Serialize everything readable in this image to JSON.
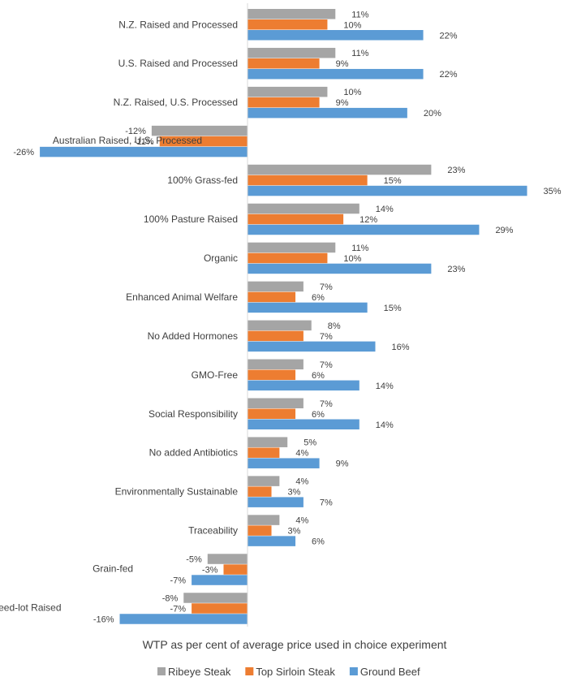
{
  "chart_data": {
    "type": "bar",
    "orientation": "horizontal",
    "xlabel": "WTP as per cent of average price used in choice experiment",
    "ylabel": "",
    "xlim": [
      -26,
      35
    ],
    "grid": false,
    "legend_position": "bottom",
    "categories": [
      "N.Z. Raised and Processed",
      "U.S. Raised and Processed",
      "N.Z. Raised, U.S. Processed",
      "Australian Raised, U.S. Processed",
      "100% Grass-fed",
      "100% Pasture Raised",
      "Organic",
      "Enhanced Animal Welfare",
      "No Added Hormones",
      "GMO-Free",
      "Social Responsibility",
      "No added Antibiotics",
      "Environmentally Sustainable",
      "Traceability",
      "Grain-fed",
      "Feed-lot Raised"
    ],
    "series": [
      {
        "name": "Ribeye Steak",
        "color": "#a5a5a5",
        "values": [
          11,
          11,
          10,
          -12,
          23,
          14,
          11,
          7,
          8,
          7,
          7,
          5,
          4,
          4,
          -5,
          -8
        ],
        "labels": [
          "11%",
          "11%",
          "10%",
          "-12%",
          "23%",
          "14%",
          "11%",
          "7%",
          "8%",
          "7%",
          "7%",
          "5%",
          "4%",
          "4%",
          "-5%",
          "-8%"
        ]
      },
      {
        "name": "Top Sirloin Steak",
        "color": "#ed7d31",
        "values": [
          10,
          9,
          9,
          -11,
          15,
          12,
          10,
          6,
          7,
          6,
          6,
          4,
          3,
          3,
          -3,
          -7
        ],
        "labels": [
          "10%",
          "9%",
          "9%",
          "-11%",
          "15%",
          "12%",
          "10%",
          "6%",
          "7%",
          "6%",
          "6%",
          "4%",
          "3%",
          "3%",
          "-3%",
          "-7%"
        ]
      },
      {
        "name": "Ground Beef",
        "color": "#5b9bd5",
        "values": [
          22,
          22,
          20,
          -26,
          35,
          29,
          23,
          15,
          16,
          14,
          14,
          9,
          7,
          6,
          -7,
          -16
        ],
        "labels": [
          "22%",
          "22%",
          "20%",
          "-26%",
          "35%",
          "29%",
          "23%",
          "15%",
          "16%",
          "14%",
          "14%",
          "9%",
          "7%",
          "6%",
          "-7%",
          "-16%"
        ]
      }
    ]
  }
}
